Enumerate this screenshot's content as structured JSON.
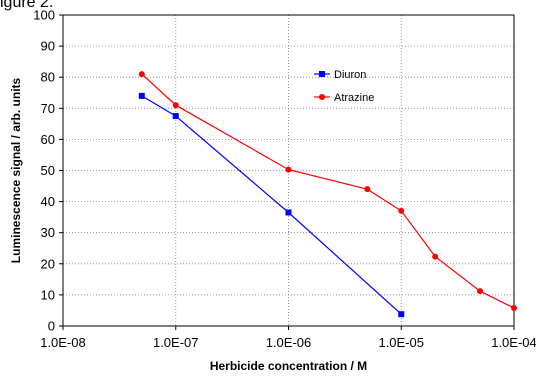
{
  "figure_label": "igure 2.",
  "chart_data": {
    "type": "line",
    "title": "",
    "xlabel": "Herbicide concentration / M",
    "ylabel": "Luminescence signal / arb. units",
    "xscale": "log",
    "xlim": [
      1e-08,
      0.0001
    ],
    "ylim": [
      0,
      100
    ],
    "x_tick_labels": [
      "1.0E-08",
      "1.0E-07",
      "1.0E-06",
      "1.0E-05",
      "1.0E-04"
    ],
    "y_tick_labels": [
      "0",
      "10",
      "20",
      "30",
      "40",
      "50",
      "60",
      "70",
      "80",
      "90",
      "100"
    ],
    "grid": true,
    "legend_position": "upper-right inside plot",
    "series": [
      {
        "name": "Diuron",
        "color": "#0000ff",
        "marker": "square",
        "x": [
          5e-08,
          1e-07,
          1e-06,
          1e-05
        ],
        "y": [
          74,
          67.5,
          36.5,
          3.8
        ]
      },
      {
        "name": "Atrazine",
        "color": "#ff0000",
        "marker": "circle",
        "x": [
          5e-08,
          1e-07,
          1e-06,
          5e-06,
          1e-05,
          2e-05,
          5e-05,
          0.0001
        ],
        "y": [
          81,
          71,
          50.3,
          44,
          37,
          22.3,
          11.2,
          5.8
        ]
      }
    ]
  }
}
